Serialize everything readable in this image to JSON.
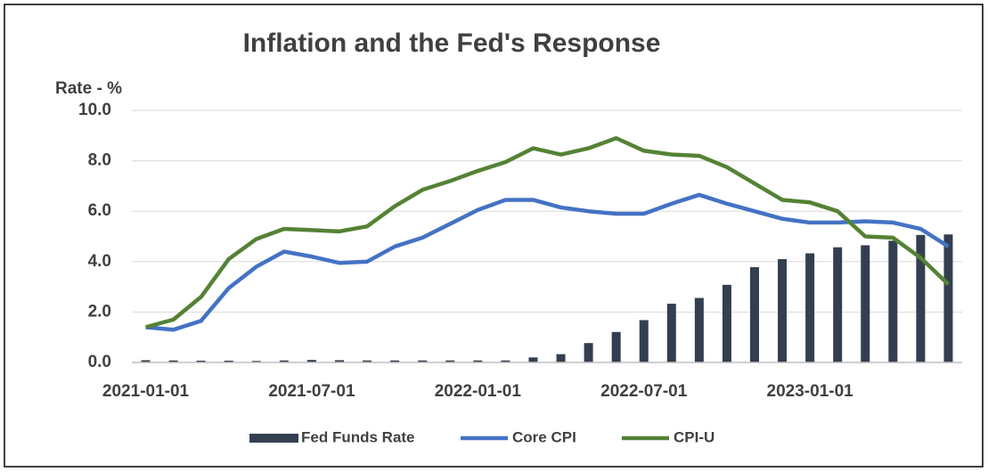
{
  "chart_data": {
    "type": "bar_line",
    "title": "Inflation and the Fed's Response",
    "y_axis_label": "Rate - %",
    "categories": [
      "2021-01-01",
      null,
      null,
      null,
      null,
      null,
      "2021-07-01",
      null,
      null,
      null,
      null,
      null,
      "2022-01-01",
      null,
      null,
      null,
      null,
      null,
      "2022-07-01",
      null,
      null,
      null,
      null,
      null,
      "2023-01-01",
      null,
      null,
      null,
      null,
      null
    ],
    "series": [
      {
        "name": "Fed Funds Rate",
        "type": "bar",
        "color": "#333f50",
        "values": [
          0.09,
          0.08,
          0.07,
          0.07,
          0.06,
          0.08,
          0.1,
          0.09,
          0.08,
          0.08,
          0.08,
          0.08,
          0.08,
          0.08,
          0.2,
          0.33,
          0.77,
          1.21,
          1.68,
          2.33,
          2.56,
          3.08,
          3.78,
          4.1,
          4.33,
          4.57,
          4.65,
          4.83,
          5.06,
          5.08
        ]
      },
      {
        "name": "Core CPI",
        "type": "line",
        "color": "#4472c4",
        "values": [
          1.4,
          1.3,
          1.65,
          2.95,
          3.8,
          4.4,
          4.2,
          3.95,
          4.0,
          4.6,
          4.95,
          5.5,
          6.05,
          6.45,
          6.45,
          6.15,
          6.0,
          5.9,
          5.9,
          6.3,
          6.65,
          6.3,
          6.0,
          5.7,
          5.55,
          5.55,
          5.6,
          5.55,
          5.3,
          4.6
        ]
      },
      {
        "name": "CPI-U",
        "type": "line",
        "color": "#548235",
        "values": [
          1.4,
          1.7,
          2.6,
          4.1,
          4.9,
          5.3,
          5.25,
          5.2,
          5.4,
          6.2,
          6.85,
          7.2,
          7.6,
          7.95,
          8.5,
          8.25,
          8.5,
          8.9,
          8.4,
          8.25,
          8.2,
          7.75,
          7.1,
          6.45,
          6.35,
          6.0,
          5.0,
          4.95,
          4.15,
          3.1
        ]
      }
    ],
    "ylim": [
      0,
      10
    ],
    "yticks": [
      {
        "value": 0,
        "label": "0.0"
      },
      {
        "value": 2,
        "label": "2.0"
      },
      {
        "value": 4,
        "label": "4.0"
      },
      {
        "value": 6,
        "label": "6.0"
      },
      {
        "value": 8,
        "label": "8.0"
      },
      {
        "value": 10,
        "label": "10.0"
      }
    ],
    "grid": true,
    "legend": "bottom"
  }
}
